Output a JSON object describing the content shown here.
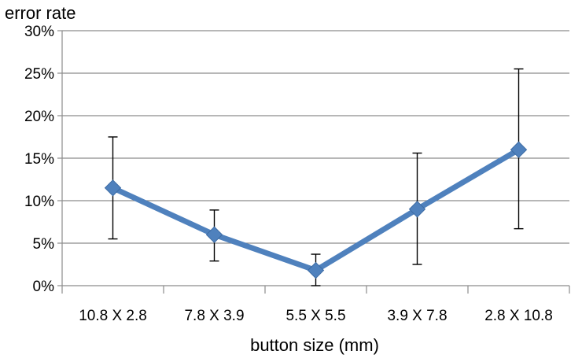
{
  "chart_data": {
    "type": "line",
    "title": "",
    "xlabel": "button size (mm)",
    "ylabel": "error rate",
    "categories": [
      "10.8 X 2.8",
      "7.8 X 3.9",
      "5.5 X 5.5",
      "3.9 X 7.8",
      "2.8 X 10.8"
    ],
    "series": [
      {
        "values": [
          11.5,
          6.0,
          1.8,
          9.0,
          16.0
        ],
        "error_low": [
          5.5,
          2.9,
          0.0,
          2.5,
          6.7
        ],
        "error_high": [
          17.5,
          8.9,
          3.7,
          15.6,
          25.5
        ],
        "color": "#4f81bd",
        "marker": "diamond"
      }
    ],
    "ylim": [
      0,
      30
    ],
    "yticks": [
      0,
      5,
      10,
      15,
      20,
      25,
      30
    ],
    "ytick_labels": [
      "0%",
      "5%",
      "10%",
      "15%",
      "20%",
      "25%",
      "30%"
    ],
    "grid": true,
    "legend": "none"
  }
}
